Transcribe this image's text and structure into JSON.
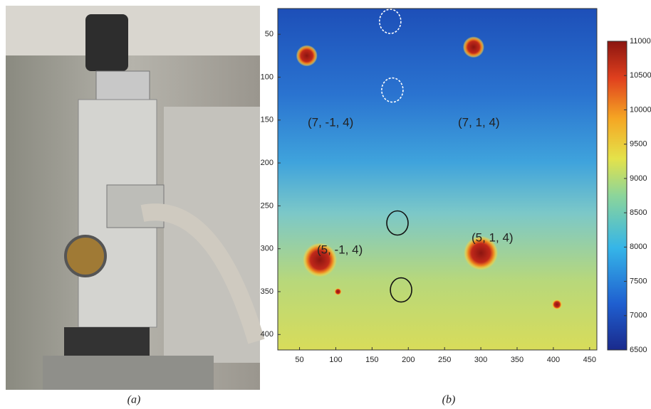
{
  "panels": [
    {
      "caption": "(a)"
    },
    {
      "caption": "(b)",
      "xlim": [
        20,
        460
      ],
      "ylim": [
        20,
        418
      ],
      "xticks": [
        50,
        100,
        150,
        200,
        250,
        300,
        350,
        400,
        450
      ],
      "yticks": [
        50,
        100,
        150,
        200,
        250,
        300,
        350,
        400
      ],
      "colorbar": {
        "lim": [
          6500,
          11000
        ],
        "ticks": [
          6500,
          7000,
          7500,
          8000,
          8500,
          9000,
          9500,
          10000,
          10500,
          11000
        ]
      },
      "annotations": [
        "(7, -1, 4)",
        "(7, 1, 4)",
        "(5, -1, 4)",
        "(5, 1, 4)"
      ],
      "spots": [
        {
          "x": 60,
          "y": 75
        },
        {
          "x": 290,
          "y": 65
        },
        {
          "x": 78,
          "y": 313
        },
        {
          "x": 300,
          "y": 305
        },
        {
          "x": 103,
          "y": 350
        },
        {
          "x": 405,
          "y": 365
        }
      ],
      "rings": [
        {
          "x": 175,
          "y": 35
        },
        {
          "x": 178,
          "y": 115
        },
        {
          "x": 185,
          "y": 270
        },
        {
          "x": 190,
          "y": 348
        }
      ]
    }
  ]
}
